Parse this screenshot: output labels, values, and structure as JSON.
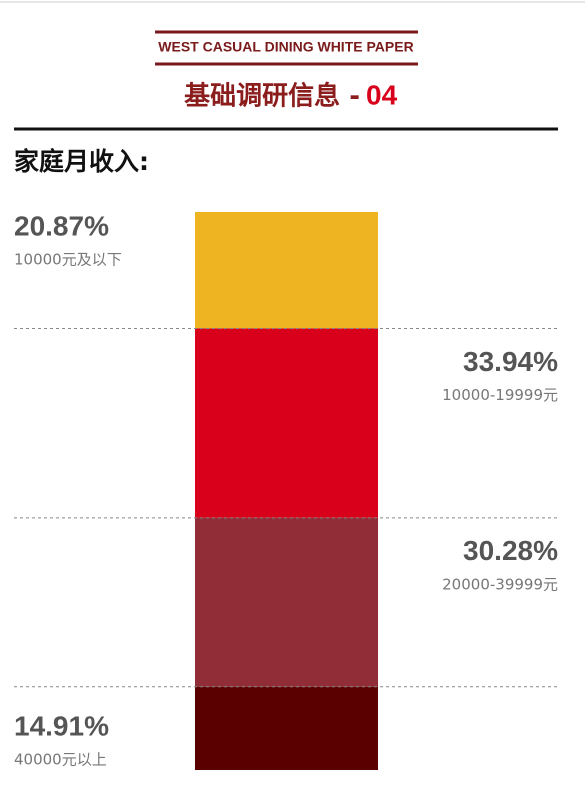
{
  "chart_data": {
    "type": "stacked-bar",
    "title": "WEST CASUAL DINING WHITE PAPER",
    "subtitle": "基础调研信息 -",
    "subtitle_number": "04",
    "heading": "家庭月收入:",
    "categories": [
      "10000元及以下",
      "10000-19999元",
      "20000-39999元",
      "40000元以上"
    ],
    "values": [
      20.87,
      33.94,
      30.28,
      14.91
    ],
    "value_labels": [
      "20.87%",
      "33.94%",
      "30.28%",
      "14.91%"
    ],
    "colors": [
      "#eeb422",
      "#d9001b",
      "#902d37",
      "#5a0000"
    ]
  }
}
